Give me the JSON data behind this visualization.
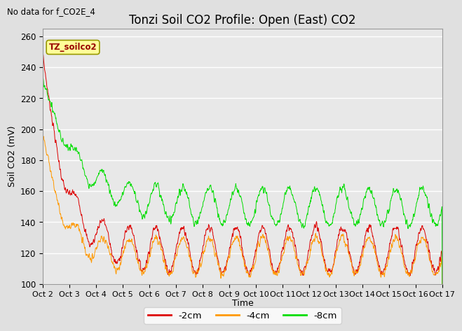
{
  "title": "Tonzi Soil CO2 Profile: Open (East) CO2",
  "subtitle": "No data for f_CO2E_4",
  "ylabel": "Soil CO2 (mV)",
  "xlabel": "Time",
  "ylim": [
    100,
    265
  ],
  "yticks": [
    100,
    120,
    140,
    160,
    180,
    200,
    220,
    240,
    260
  ],
  "xtick_labels": [
    "Oct 2",
    "Oct 3",
    "Oct 4",
    "Oct 5",
    "Oct 6",
    "Oct 7",
    "Oct 8",
    "Oct 9",
    "Oct 10",
    "Oct 11",
    "Oct 12",
    "Oct 13",
    "Oct 14",
    "Oct 15",
    "Oct 16",
    "Oct 17"
  ],
  "legend_label": "TZ_soilco2",
  "line_labels": [
    "-2cm",
    "-4cm",
    "-8cm"
  ],
  "line_colors": [
    "#dd0000",
    "#ff9900",
    "#00dd00"
  ],
  "bg_color": "#e0e0e0",
  "plot_bg_color": "#e8e8e8",
  "title_fontsize": 12,
  "axis_fontsize": 9,
  "figsize": [
    6.4,
    4.8
  ],
  "dpi": 100
}
